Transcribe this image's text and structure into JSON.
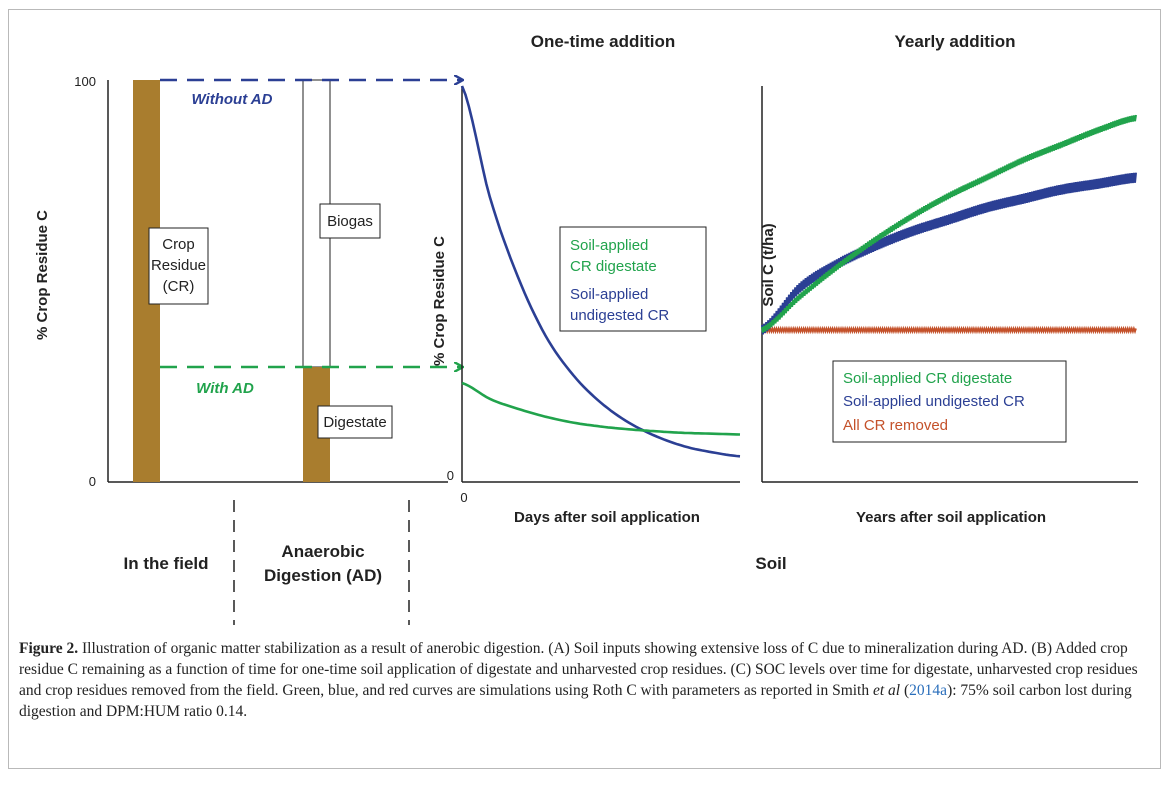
{
  "panel_a": {
    "ylabel": "% Crop Residue C",
    "y_tick_top": "100",
    "y_tick_bottom": "0",
    "box_crop_residue": [
      "Crop",
      "Residue",
      "(CR)"
    ],
    "box_biogas": "Biogas",
    "box_digestate": "Digestate",
    "label_without_ad": "Without AD",
    "label_with_ad": "With AD",
    "section_field": "In the field",
    "section_ad": [
      "Anaerobic",
      "Digestion (AD)"
    ],
    "colors": {
      "bar": "#a97d2e",
      "blue": "#2b3f94",
      "green": "#21a34c"
    }
  },
  "panel_b": {
    "title": "One-time addition",
    "ylabel": "% Crop Residue C",
    "xlabel": "Days after soil application",
    "y_tick_bottom": "0",
    "x_tick_origin": "0",
    "legend": [
      "Soil-applied",
      "CR digestate",
      "Soil-applied",
      "undigested CR"
    ]
  },
  "panel_c": {
    "title": "Yearly addition",
    "ylabel": "Soil C (t/ha)",
    "xlabel": "Years after soil application",
    "legend": [
      "Soil-applied CR digestate",
      "Soil-applied undigested CR",
      "All CR removed"
    ],
    "colors": {
      "green": "#21a34c",
      "blue": "#2b3f94",
      "red": "#c4512a"
    }
  },
  "section_soil": "Soil",
  "chart_data": [
    {
      "type": "bar",
      "ylabel": "% Crop Residue C",
      "ylim": [
        0,
        100
      ],
      "categories": [
        "In the field",
        "Anaerobic Digestion (AD)"
      ],
      "series": [
        {
          "name": "Crop Residue (CR)",
          "values": [
            100,
            0
          ]
        },
        {
          "name": "Digestate",
          "values": [
            0,
            25
          ]
        },
        {
          "name": "Biogas",
          "values": [
            0,
            75
          ]
        }
      ]
    },
    {
      "type": "line",
      "title": "One-time addition",
      "xlabel": "Days after soil application",
      "ylabel": "% Crop Residue C",
      "x": [
        0,
        1,
        2,
        3,
        4,
        5,
        6,
        7,
        8,
        9,
        10
      ],
      "series": [
        {
          "name": "Soil-applied CR digestate",
          "values": [
            25,
            21,
            18.5,
            16.5,
            15,
            14,
            13.3,
            12.8,
            12.4,
            12.2,
            12
          ]
        },
        {
          "name": "Soil-applied undigested CR",
          "values": [
            100,
            72,
            52,
            37,
            27,
            20,
            15,
            11.5,
            9,
            7.5,
            6.5
          ]
        }
      ]
    },
    {
      "type": "line",
      "title": "Yearly addition",
      "xlabel": "Years after soil application",
      "ylabel": "Soil C (t/ha)",
      "x": [
        0,
        1,
        2,
        3,
        4,
        5,
        6,
        7,
        8,
        9,
        10
      ],
      "series": [
        {
          "name": "Soil-applied CR digestate",
          "values": [
            0,
            11,
            21,
            30,
            38,
            45,
            51,
            57,
            62,
            67,
            71
          ]
        },
        {
          "name": "Soil-applied undigested CR",
          "values": [
            0,
            14,
            22,
            28,
            33,
            37,
            41,
            44,
            47,
            49,
            51
          ]
        },
        {
          "name": "All CR removed",
          "values": [
            0,
            0,
            0,
            0,
            0,
            0,
            0,
            0,
            0,
            0,
            0
          ]
        }
      ]
    }
  ],
  "caption": {
    "label": "Figure 2.",
    "text_1": " Illustration of organic matter stabilization as a result of anerobic digestion. (A) Soil inputs showing extensive loss of C due to mineralization during AD. (B) Added crop residue C remaining as a function of time for one-time soil application of digestate and unharvested crop residues. (C) SOC levels over time for digestate, unharvested crop residues and crop residues removed from the field. Green, blue, and red curves are simulations using Roth C with parameters as reported in Smith ",
    "etal": "et al",
    "paren_open": " (",
    "ref": "2014a",
    "text_2": "): 75% soil carbon lost during digestion and DPM:HUM ratio 0.14."
  }
}
